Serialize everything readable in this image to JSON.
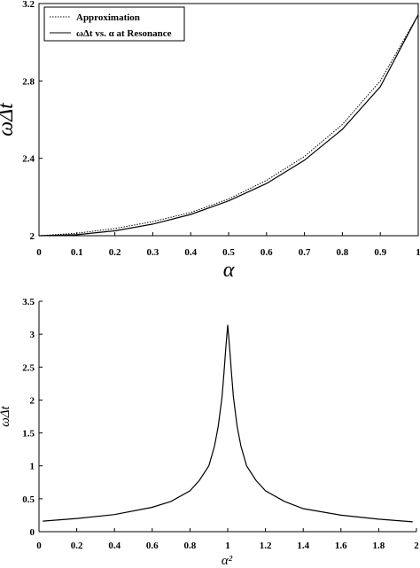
{
  "chart_data": [
    {
      "type": "line",
      "xlabel": "α",
      "ylabel": "ωΔt",
      "xlim": [
        0,
        1
      ],
      "ylim": [
        2,
        3.2
      ],
      "x_ticks": [
        "0",
        "0.1",
        "0.2",
        "0.3",
        "0.4",
        "0.5",
        "0.6",
        "0.7",
        "0.8",
        "0.9",
        "1"
      ],
      "y_ticks": [
        "2",
        "2.4",
        "2.8",
        "3.2"
      ],
      "grid": false,
      "legend_position": "top-left",
      "series": [
        {
          "name": "Approximation",
          "style": "dotted",
          "x": [
            0,
            0.1,
            0.2,
            0.3,
            0.4,
            0.5,
            0.6,
            0.7,
            0.8,
            0.9,
            1.0
          ],
          "y": [
            2.0,
            2.013,
            2.037,
            2.073,
            2.12,
            2.19,
            2.286,
            2.41,
            2.575,
            2.8,
            3.142
          ]
        },
        {
          "name": "ωΔt vs. α at Resonance",
          "style": "solid",
          "x": [
            0,
            0.1,
            0.2,
            0.3,
            0.4,
            0.5,
            0.6,
            0.7,
            0.8,
            0.9,
            1.0
          ],
          "y": [
            2.0,
            2.005,
            2.025,
            2.06,
            2.11,
            2.18,
            2.27,
            2.39,
            2.55,
            2.77,
            3.142
          ]
        }
      ]
    },
    {
      "type": "line",
      "xlabel": "α²",
      "ylabel": "ωΔt",
      "xlim": [
        0,
        2
      ],
      "ylim": [
        0,
        3.5
      ],
      "x_ticks": [
        "0",
        "0.2",
        "0.4",
        "0.6",
        "0.8",
        "1",
        "1.2",
        "1.4",
        "1.6",
        "1.8",
        "2"
      ],
      "y_ticks": [
        "0",
        "0.5",
        "1",
        "1.5",
        "2",
        "2.5",
        "3",
        "3.5"
      ],
      "grid": false,
      "series": [
        {
          "style": "solid",
          "x": [
            0.02,
            0.2,
            0.4,
            0.6,
            0.7,
            0.8,
            0.85,
            0.9,
            0.93,
            0.95,
            0.97,
            0.98,
            0.99,
            1.0,
            1.01,
            1.02,
            1.03,
            1.05,
            1.07,
            1.1,
            1.15,
            1.2,
            1.3,
            1.4,
            1.6,
            1.8,
            1.98
          ],
          "y": [
            0.16,
            0.2,
            0.26,
            0.37,
            0.46,
            0.62,
            0.78,
            1.0,
            1.3,
            1.6,
            2.05,
            2.4,
            2.8,
            3.14,
            2.8,
            2.4,
            2.05,
            1.6,
            1.3,
            1.0,
            0.78,
            0.62,
            0.46,
            0.35,
            0.25,
            0.19,
            0.15
          ]
        }
      ]
    }
  ]
}
